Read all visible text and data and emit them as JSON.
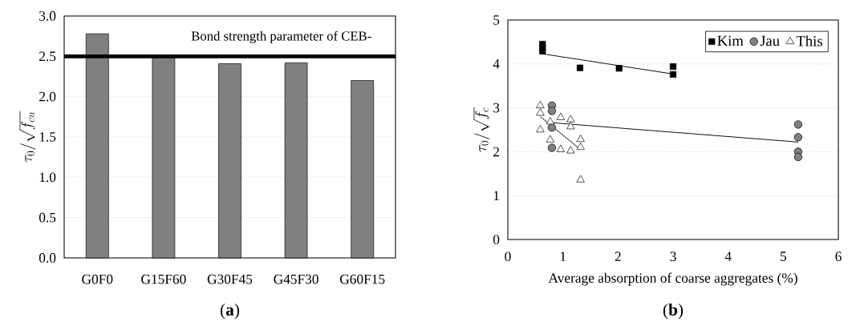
{
  "chart_data": [
    {
      "type": "bar",
      "title": "(**a**)",
      "ylabel": "\\tau_0/\\sqrt{f_{cu}}",
      "categories": [
        "G0F0",
        "G15F60",
        "G30F45",
        "G45F30",
        "G60F15"
      ],
      "values": [
        2.78,
        2.48,
        2.41,
        2.42,
        2.2
      ],
      "color": "#808080",
      "ylim": [
        0,
        3
      ],
      "yticks": [
        {
          "value": 0,
          "label": "0.0"
        },
        0.5,
        {
          "value": 1,
          "label": "1.0"
        },
        1.5,
        {
          "value": 2,
          "label": "2.0"
        },
        2.5,
        {
          "value": 3,
          "label": "3.0"
        }
      ],
      "grid": "y",
      "ref_lines": [
        {
          "axis": "y",
          "value": 2.5,
          "label": "Bond strength parameter of CEB-",
          "color": "#000000"
        }
      ]
    },
    {
      "type": "scatter",
      "title": "(**b**)",
      "xlabel": "Average absorption of coarse aggregates (%)",
      "ylabel": "\\tau_0/\\sqrt{f_c}",
      "xlim": [
        0,
        6
      ],
      "xticks": [
        0,
        1,
        2,
        3,
        4,
        5,
        6
      ],
      "ylim": [
        0,
        5
      ],
      "yticks": [
        0,
        1,
        2,
        3,
        4,
        5
      ],
      "grid": "y",
      "legend": "top right",
      "series": [
        {
          "name": "Kim",
          "color": "#000000",
          "marker": "square",
          "x": [
            0.63,
            0.63,
            0.63,
            1.31,
            2.02,
            3.0,
            3.0
          ],
          "values": [
            4.45,
            4.37,
            4.29,
            3.91,
            3.9,
            3.94,
            3.76
          ]
        },
        {
          "name": "Jau",
          "color": "#808080",
          "marker": "circle",
          "x": [
            0.8,
            0.8,
            0.8,
            0.8,
            5.27,
            5.27,
            5.27,
            5.27
          ],
          "values": [
            3.05,
            2.93,
            2.55,
            2.09,
            2.62,
            2.33,
            2.0,
            1.88
          ]
        },
        {
          "name": "This",
          "color": "#ffffff",
          "marker": "triangle",
          "x": [
            0.59,
            0.59,
            0.59,
            0.77,
            0.77,
            0.96,
            0.96,
            1.14,
            1.14,
            1.14,
            1.32,
            1.32,
            1.32
          ],
          "values": [
            3.05,
            2.88,
            2.5,
            2.68,
            2.27,
            2.78,
            2.05,
            2.73,
            2.57,
            2.02,
            2.28,
            2.1,
            1.36
          ]
        },
        {
          "type": "line",
          "color": "#000000",
          "marker": "none",
          "x": [
            0.63,
            3.0
          ],
          "values": [
            4.23,
            3.77
          ]
        },
        {
          "type": "line",
          "color": "#000000",
          "marker": "none",
          "x": [
            0.8,
            5.27
          ],
          "values": [
            2.66,
            2.22
          ]
        },
        {
          "type": "line",
          "color": "#000000",
          "marker": "none",
          "x": [
            0.59,
            1.28
          ],
          "values": [
            2.8,
            2.09
          ]
        }
      ]
    }
  ]
}
